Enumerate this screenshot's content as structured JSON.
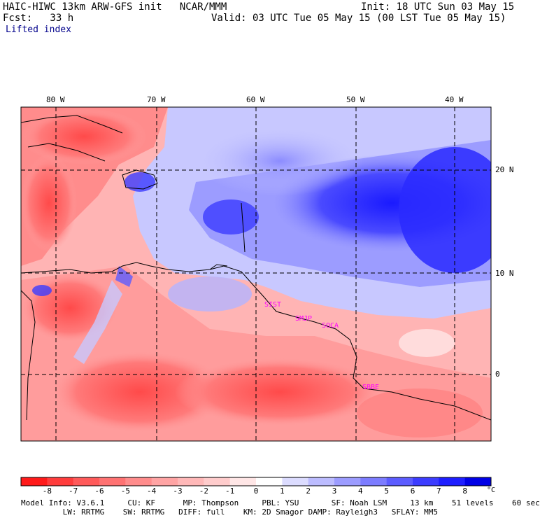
{
  "header": {
    "line1_left": "HAIC-HIWC 13km ARW-GFS init   NCAR/MMM",
    "line1_right": "Init: 18 UTC Sun 03 May 15",
    "line2_left": "Fcst:   33 h",
    "line2_right": "Valid: 03 UTC Tue 05 May 15 (00 LST Tue 05 May 15)",
    "field_name": "Lifted index"
  },
  "map": {
    "lon_labels": [
      "80 W",
      "70 W",
      "60 W",
      "50 W",
      "40 W"
    ],
    "lat_labels": [
      "20 N",
      "10 N",
      "0"
    ],
    "stations": [
      "SIST",
      "SMJP",
      "SOCA",
      "SBBE"
    ],
    "colors": {
      "negative_strong": "#ff1a1a",
      "negative_light": "#ffc8c8",
      "neutral": "#ffffff",
      "positive_light": "#c8c8ff",
      "positive_strong": "#1a1aff",
      "station_label": "#ff00ff",
      "coastline": "#000000",
      "grid": "#000000"
    }
  },
  "colorbar": {
    "tick_labels": [
      "-8",
      "-7",
      "-6",
      "-5",
      "-4",
      "-3",
      "-2",
      "-1",
      "0",
      "1",
      "2",
      "3",
      "4",
      "5",
      "6",
      "7",
      "8"
    ],
    "unit": "°C",
    "colors": [
      "#ff1a1a",
      "#ff3c3c",
      "#ff5a5a",
      "#ff7272",
      "#ff8c8c",
      "#ffa4a4",
      "#ffb8b8",
      "#ffcccc",
      "#ffe6e6",
      "#ffffff",
      "#dcdcff",
      "#bcbcff",
      "#9c9cff",
      "#7c7cff",
      "#5c5cff",
      "#3c3cff",
      "#1e1eff",
      "#0000e6"
    ]
  },
  "model_info": {
    "line1": "Model Info: V3.6.1     CU: KF      MP: Thompson     PBL: YSU       SF: Noah LSM     13 km    51 levels    60 sec",
    "line2": "         LW: RRTMG    SW: RRTMG   DIFF: full    KM: 2D Smagor DAMP: Rayleigh3   SFLAY: MM5"
  }
}
